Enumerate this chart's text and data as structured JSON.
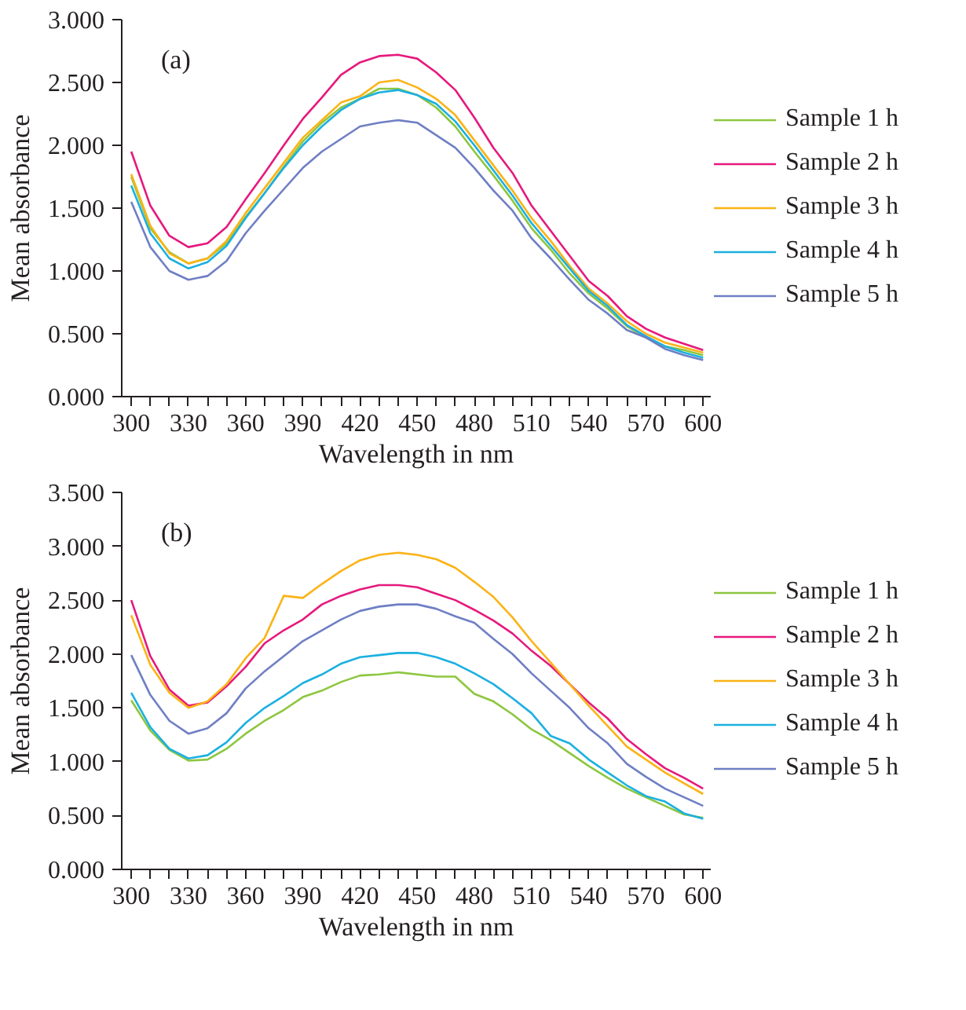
{
  "chart_data": [
    {
      "type": "line",
      "xlabel": "Wavelength in nm",
      "ylabel": "Mean absorbance",
      "annotations": [
        "(a)"
      ],
      "legend": "right",
      "grid": false,
      "xlim": [
        295,
        604
      ],
      "ylim": [
        0,
        3
      ],
      "xticks": [
        300,
        {
          "value": 310,
          "label": null
        },
        {
          "value": 320,
          "label": null
        },
        330,
        {
          "value": 340,
          "label": null
        },
        {
          "value": 350,
          "label": null
        },
        360,
        {
          "value": 370,
          "label": null
        },
        {
          "value": 380,
          "label": null
        },
        390,
        {
          "value": 400,
          "label": null
        },
        {
          "value": 410,
          "label": null
        },
        420,
        {
          "value": 430,
          "label": null
        },
        {
          "value": 440,
          "label": null
        },
        450,
        {
          "value": 460,
          "label": null
        },
        {
          "value": 470,
          "label": null
        },
        480,
        {
          "value": 490,
          "label": null
        },
        {
          "value": 500,
          "label": null
        },
        510,
        {
          "value": 520,
          "label": null
        },
        {
          "value": 530,
          "label": null
        },
        540,
        {
          "value": 550,
          "label": null
        },
        {
          "value": 560,
          "label": null
        },
        570,
        {
          "value": 580,
          "label": null
        },
        {
          "value": 590,
          "label": null
        },
        600
      ],
      "yticks": [
        {
          "value": 0,
          "label": "0.000"
        },
        {
          "value": 0.5,
          "label": "0.500"
        },
        {
          "value": 1,
          "label": "1.000"
        },
        {
          "value": 1.5,
          "label": "1.500"
        },
        {
          "value": 2,
          "label": "2.000"
        },
        {
          "value": 2.5,
          "label": "2.500"
        },
        {
          "value": 3,
          "label": "3.000"
        }
      ],
      "x": [
        300,
        310,
        320,
        330,
        340,
        350,
        360,
        370,
        380,
        390,
        400,
        410,
        420,
        430,
        440,
        450,
        460,
        470,
        480,
        490,
        500,
        510,
        520,
        530,
        540,
        550,
        560,
        570,
        580,
        590,
        600
      ],
      "series": [
        {
          "name": "Sample 1 h",
          "color": "#8dc63f",
          "values": [
            1.75,
            1.34,
            1.15,
            1.06,
            1.1,
            1.22,
            1.43,
            1.62,
            1.83,
            2.03,
            2.18,
            2.3,
            2.37,
            2.45,
            2.45,
            2.4,
            2.3,
            2.15,
            1.95,
            1.76,
            1.56,
            1.34,
            1.17,
            0.98,
            0.82,
            0.7,
            0.56,
            0.47,
            0.4,
            0.37,
            0.33
          ]
        },
        {
          "name": "Sample 2 h",
          "color": "#e6197d",
          "values": [
            1.95,
            1.52,
            1.28,
            1.19,
            1.22,
            1.35,
            1.57,
            1.78,
            2.0,
            2.21,
            2.38,
            2.56,
            2.66,
            2.71,
            2.72,
            2.69,
            2.58,
            2.44,
            2.22,
            1.98,
            1.78,
            1.52,
            1.32,
            1.12,
            0.92,
            0.8,
            0.64,
            0.54,
            0.47,
            0.42,
            0.37
          ]
        },
        {
          "name": "Sample 3 h",
          "color": "#fbb316",
          "values": [
            1.77,
            1.36,
            1.14,
            1.06,
            1.1,
            1.24,
            1.46,
            1.66,
            1.86,
            2.06,
            2.2,
            2.34,
            2.39,
            2.5,
            2.52,
            2.46,
            2.37,
            2.24,
            2.04,
            1.84,
            1.64,
            1.42,
            1.24,
            1.04,
            0.86,
            0.74,
            0.6,
            0.5,
            0.43,
            0.39,
            0.35
          ]
        },
        {
          "name": "Sample 4 h",
          "color": "#1cb0e0",
          "values": [
            1.68,
            1.3,
            1.1,
            1.02,
            1.07,
            1.2,
            1.42,
            1.62,
            1.82,
            2.0,
            2.15,
            2.28,
            2.37,
            2.42,
            2.44,
            2.4,
            2.33,
            2.19,
            2.0,
            1.8,
            1.6,
            1.38,
            1.2,
            1.02,
            0.84,
            0.72,
            0.57,
            0.48,
            0.4,
            0.35,
            0.31
          ]
        },
        {
          "name": "Sample 5 h",
          "color": "#6f7fc4",
          "values": [
            1.55,
            1.19,
            1.0,
            0.93,
            0.96,
            1.08,
            1.3,
            1.48,
            1.65,
            1.82,
            1.95,
            2.05,
            2.15,
            2.18,
            2.2,
            2.18,
            2.08,
            1.98,
            1.82,
            1.64,
            1.48,
            1.26,
            1.1,
            0.93,
            0.77,
            0.66,
            0.53,
            0.47,
            0.38,
            0.33,
            0.29
          ]
        }
      ]
    },
    {
      "type": "line",
      "xlabel": "Wavelength in nm",
      "ylabel": "Mean absorbance",
      "annotations": [
        "(b)"
      ],
      "legend": "right",
      "grid": false,
      "xlim": [
        295,
        604
      ],
      "ylim": [
        0,
        3.5
      ],
      "xticks": [
        300,
        {
          "value": 310,
          "label": null
        },
        {
          "value": 320,
          "label": null
        },
        330,
        {
          "value": 340,
          "label": null
        },
        {
          "value": 350,
          "label": null
        },
        360,
        {
          "value": 370,
          "label": null
        },
        {
          "value": 380,
          "label": null
        },
        390,
        {
          "value": 400,
          "label": null
        },
        {
          "value": 410,
          "label": null
        },
        420,
        {
          "value": 430,
          "label": null
        },
        {
          "value": 440,
          "label": null
        },
        450,
        {
          "value": 460,
          "label": null
        },
        {
          "value": 470,
          "label": null
        },
        480,
        {
          "value": 490,
          "label": null
        },
        {
          "value": 500,
          "label": null
        },
        510,
        {
          "value": 520,
          "label": null
        },
        {
          "value": 530,
          "label": null
        },
        540,
        {
          "value": 550,
          "label": null
        },
        {
          "value": 560,
          "label": null
        },
        570,
        {
          "value": 580,
          "label": null
        },
        {
          "value": 590,
          "label": null
        },
        600
      ],
      "yticks": [
        {
          "value": 0,
          "label": "0.000"
        },
        {
          "value": 0.5,
          "label": "0.500"
        },
        {
          "value": 1,
          "label": "1.000"
        },
        {
          "value": 1.5,
          "label": "1.500"
        },
        {
          "value": 2,
          "label": "2.000"
        },
        {
          "value": 2.5,
          "label": "2.500"
        },
        {
          "value": 3,
          "label": "3.000"
        },
        {
          "value": 3.5,
          "label": "3.500"
        }
      ],
      "x": [
        300,
        310,
        320,
        330,
        340,
        350,
        360,
        370,
        380,
        390,
        400,
        410,
        420,
        430,
        440,
        450,
        460,
        470,
        480,
        490,
        500,
        510,
        520,
        530,
        540,
        550,
        560,
        570,
        580,
        590,
        600
      ],
      "series": [
        {
          "name": "Sample 1 h",
          "color": "#8dc63f",
          "values": [
            1.57,
            1.29,
            1.11,
            1.01,
            1.02,
            1.12,
            1.26,
            1.38,
            1.48,
            1.6,
            1.66,
            1.74,
            1.8,
            1.81,
            1.83,
            1.81,
            1.79,
            1.79,
            1.63,
            1.56,
            1.44,
            1.3,
            1.2,
            1.08,
            0.96,
            0.85,
            0.75,
            0.67,
            0.59,
            0.51,
            0.48
          ]
        },
        {
          "name": "Sample 2 h",
          "color": "#e6197d",
          "values": [
            2.5,
            1.98,
            1.67,
            1.52,
            1.55,
            1.7,
            1.88,
            2.1,
            2.22,
            2.32,
            2.46,
            2.54,
            2.6,
            2.64,
            2.64,
            2.62,
            2.56,
            2.5,
            2.41,
            2.31,
            2.19,
            2.03,
            1.89,
            1.72,
            1.55,
            1.4,
            1.21,
            1.07,
            0.94,
            0.85,
            0.75
          ]
        },
        {
          "name": "Sample 3 h",
          "color": "#fbb316",
          "values": [
            2.36,
            1.9,
            1.64,
            1.5,
            1.56,
            1.72,
            1.96,
            2.15,
            2.54,
            2.52,
            2.65,
            2.77,
            2.87,
            2.92,
            2.94,
            2.92,
            2.88,
            2.8,
            2.67,
            2.53,
            2.34,
            2.12,
            1.92,
            1.72,
            1.52,
            1.33,
            1.14,
            1.02,
            0.9,
            0.8,
            0.7
          ]
        },
        {
          "name": "Sample 4 h",
          "color": "#1cb0e0",
          "values": [
            1.64,
            1.32,
            1.12,
            1.03,
            1.06,
            1.18,
            1.36,
            1.5,
            1.61,
            1.73,
            1.81,
            1.91,
            1.97,
            1.99,
            2.01,
            2.01,
            1.97,
            1.91,
            1.82,
            1.72,
            1.59,
            1.45,
            1.24,
            1.17,
            1.02,
            0.9,
            0.78,
            0.68,
            0.63,
            0.52,
            0.47
          ]
        },
        {
          "name": "Sample 5 h",
          "color": "#6f7fc4",
          "values": [
            1.99,
            1.62,
            1.38,
            1.26,
            1.31,
            1.45,
            1.68,
            1.84,
            1.98,
            2.12,
            2.22,
            2.32,
            2.4,
            2.44,
            2.46,
            2.46,
            2.42,
            2.35,
            2.29,
            2.14,
            2.0,
            1.82,
            1.66,
            1.5,
            1.31,
            1.17,
            0.98,
            0.86,
            0.75,
            0.67,
            0.59
          ]
        }
      ]
    }
  ]
}
